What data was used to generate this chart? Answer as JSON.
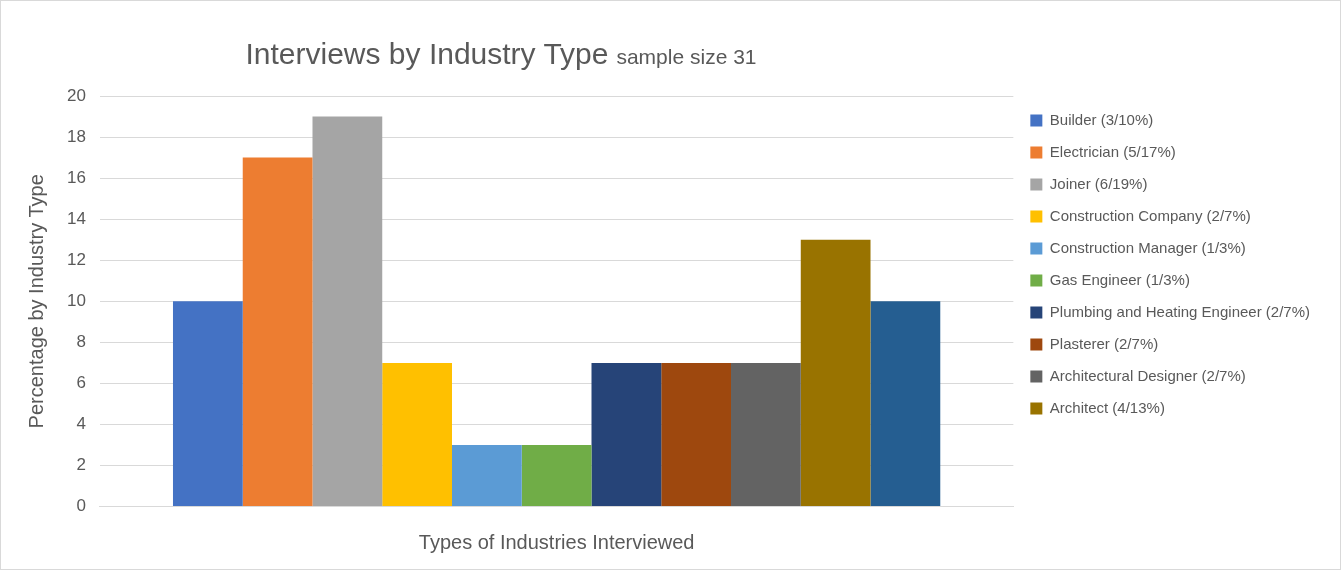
{
  "chart_data": {
    "type": "bar",
    "title": "Interviews by Industry Type",
    "subtitle": "sample size 31",
    "xlabel": "Types of Industries Interviewed",
    "ylabel": "Percentage by Industry Type",
    "categories": [
      null
    ],
    "series": [
      {
        "name": "Builder (3/10%)",
        "color": "#4472c4",
        "values": [
          10
        ]
      },
      {
        "name": "Electrician (5/17%)",
        "color": "#ed7d31",
        "values": [
          17
        ]
      },
      {
        "name": "Joiner (6/19%)",
        "color": "#a5a5a5",
        "values": [
          19
        ]
      },
      {
        "name": "Construction Company (2/7%)",
        "color": "#ffc000",
        "values": [
          7
        ]
      },
      {
        "name": "Construction Manager (1/3%)",
        "color": "#5b9bd5",
        "values": [
          3
        ]
      },
      {
        "name": "Gas Engineer (1/3%)",
        "color": "#70ad47",
        "values": [
          3
        ]
      },
      {
        "name": "Plumbing and Heating Engineer (2/7%)",
        "color": "#264478",
        "values": [
          7
        ]
      },
      {
        "name": "Plasterer (2/7%)",
        "color": "#9e480e",
        "values": [
          7
        ]
      },
      {
        "name": "Architectural Designer (2/7%)",
        "color": "#636363",
        "values": [
          7
        ]
      },
      {
        "name": "Architect (4/13%)",
        "color": "#997300",
        "values": [
          13
        ]
      },
      {
        "color": "#255e91",
        "values": [
          10
        ]
      }
    ],
    "ylim": [
      0,
      20
    ],
    "yticks": [
      0,
      2,
      4,
      6,
      8,
      10,
      12,
      14,
      16,
      18,
      20
    ],
    "grid": "y",
    "legend": "right"
  }
}
